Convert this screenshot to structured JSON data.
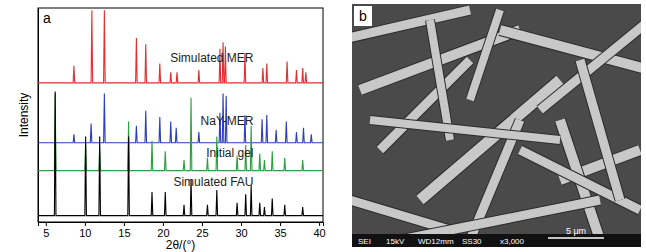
{
  "chart_data": {
    "type": "line",
    "panel_label": "a",
    "x_label": "2θ/(°)",
    "y_label": "Intensity",
    "xlim": [
      4,
      40.5
    ],
    "xticks": [
      5,
      10,
      15,
      20,
      25,
      30,
      35,
      40
    ],
    "ylim": [
      0,
      10
    ],
    "tick_labels": "x",
    "series": [
      {
        "name": "Simulated MER",
        "color": "#e03131",
        "x": [
          4,
          8.5,
          8.6,
          8.7,
          10.8,
          10.9,
          11.0,
          12.4,
          12.5,
          12.6,
          16.5,
          16.6,
          16.7,
          17.7,
          17.8,
          17.9,
          19.5,
          19.6,
          19.7,
          20.9,
          21.0,
          21.1,
          21.7,
          21.8,
          21.9,
          24.5,
          24.6,
          24.7,
          27.2,
          27.3,
          27.4,
          27.6,
          27.7,
          27.8,
          27.9,
          28.0,
          28.1,
          30.4,
          30.5,
          30.6,
          32.7,
          32.8,
          32.9,
          33.2,
          33.3,
          33.4,
          35.8,
          35.9,
          36.0,
          37.0,
          37.1,
          37.2,
          37.8,
          37.9,
          38.0,
          38.2,
          38.3,
          38.4,
          40.5
        ],
        "values": [
          6.5,
          6.5,
          7.3,
          6.5,
          6.5,
          9.9,
          6.5,
          6.5,
          9.9,
          6.5,
          6.5,
          8.6,
          6.5,
          6.5,
          8.3,
          6.5,
          6.5,
          7.4,
          6.5,
          6.5,
          7.0,
          6.5,
          6.5,
          7.0,
          6.5,
          6.5,
          7.1,
          6.5,
          6.5,
          8.1,
          6.5,
          6.5,
          8.4,
          6.5,
          6.5,
          8.2,
          6.5,
          6.5,
          7.9,
          6.5,
          6.5,
          7.2,
          6.5,
          6.5,
          7.4,
          6.5,
          6.5,
          7.5,
          6.5,
          6.5,
          7.1,
          6.5,
          6.5,
          7.2,
          6.5,
          6.5,
          7.0,
          6.5,
          6.5
        ]
      },
      {
        "name": "NaY-MER",
        "color": "#2b3fbf",
        "x": [
          4,
          8.5,
          8.6,
          8.7,
          10.7,
          10.8,
          10.9,
          12.4,
          12.5,
          12.6,
          16.5,
          16.6,
          16.7,
          17.7,
          17.8,
          17.9,
          19.5,
          19.6,
          19.7,
          20.9,
          21.0,
          21.1,
          21.6,
          21.7,
          21.8,
          24.5,
          24.6,
          24.7,
          27.2,
          27.3,
          27.4,
          27.6,
          27.7,
          27.8,
          28.0,
          28.1,
          28.2,
          30.4,
          30.5,
          30.6,
          32.6,
          32.7,
          32.8,
          33.2,
          33.3,
          33.4,
          34.4,
          34.5,
          34.6,
          35.7,
          35.8,
          35.9,
          37.0,
          37.1,
          37.2,
          37.9,
          38.0,
          38.1,
          38.9,
          39.0,
          39.1,
          40.5
        ],
        "values": [
          3.7,
          3.7,
          4.1,
          3.7,
          3.7,
          4.6,
          3.7,
          3.7,
          6.0,
          3.7,
          3.7,
          4.5,
          3.7,
          3.7,
          5.2,
          3.7,
          3.7,
          4.9,
          3.7,
          3.7,
          4.7,
          3.7,
          3.7,
          4.4,
          3.7,
          3.7,
          4.2,
          3.7,
          3.7,
          5.1,
          3.7,
          3.7,
          6.0,
          3.7,
          3.7,
          5.9,
          3.7,
          3.7,
          5.0,
          3.7,
          3.7,
          4.8,
          3.7,
          3.7,
          5.0,
          3.7,
          3.7,
          4.3,
          3.7,
          3.7,
          4.7,
          3.7,
          3.7,
          4.2,
          3.7,
          3.7,
          4.4,
          3.7,
          3.7,
          4.1,
          3.7,
          3.7
        ]
      },
      {
        "name": "Initial gel",
        "color": "#2e9e3e",
        "x": [
          4,
          6.1,
          6.2,
          6.3,
          10.0,
          10.1,
          10.2,
          11.8,
          11.9,
          12.0,
          15.5,
          15.6,
          15.7,
          18.5,
          18.6,
          18.7,
          20.2,
          20.3,
          20.4,
          22.6,
          22.7,
          22.8,
          23.5,
          23.6,
          23.7,
          25.6,
          25.7,
          25.8,
          26.8,
          26.9,
          27.0,
          29.4,
          29.5,
          29.6,
          30.5,
          30.6,
          30.7,
          31.2,
          31.3,
          31.4,
          32.3,
          32.4,
          32.5,
          32.9,
          33.0,
          33.1,
          33.9,
          34.0,
          34.1,
          35.5,
          35.6,
          35.7,
          37.8,
          37.9,
          38.0,
          40.5
        ],
        "values": [
          2.4,
          2.4,
          6.0,
          2.4,
          2.4,
          3.6,
          2.4,
          2.4,
          3.4,
          2.4,
          2.4,
          4.7,
          2.4,
          2.4,
          3.8,
          2.4,
          2.4,
          3.3,
          2.4,
          2.4,
          2.9,
          2.4,
          2.4,
          5.8,
          2.4,
          2.4,
          3.0,
          2.4,
          2.4,
          4.0,
          2.4,
          2.4,
          3.1,
          2.4,
          2.4,
          3.6,
          2.4,
          2.4,
          4.5,
          2.4,
          2.4,
          3.2,
          2.4,
          2.4,
          2.9,
          2.4,
          2.4,
          3.3,
          2.4,
          2.4,
          3.0,
          2.4,
          2.4,
          2.9,
          2.4,
          2.4
        ]
      },
      {
        "name": "Simulated FAU",
        "color": "#000000",
        "x": [
          4,
          6.1,
          6.2,
          6.3,
          10.0,
          10.1,
          10.2,
          11.8,
          11.9,
          12.0,
          15.5,
          15.6,
          15.7,
          18.5,
          18.6,
          18.7,
          20.2,
          20.3,
          20.4,
          22.6,
          22.7,
          22.8,
          23.5,
          23.6,
          23.7,
          25.6,
          25.7,
          25.8,
          26.8,
          26.9,
          27.0,
          29.4,
          29.5,
          29.6,
          30.5,
          30.6,
          30.7,
          31.2,
          31.3,
          31.4,
          32.3,
          32.4,
          32.5,
          32.9,
          33.0,
          33.1,
          33.9,
          34.0,
          34.1,
          35.5,
          35.6,
          35.7,
          37.8,
          37.9,
          38.0,
          40.5
        ],
        "values": [
          0.3,
          0.3,
          6.1,
          0.3,
          0.3,
          4.0,
          0.3,
          0.3,
          4.0,
          0.3,
          0.3,
          4.0,
          0.3,
          0.3,
          1.4,
          0.3,
          0.3,
          1.4,
          0.3,
          0.3,
          0.8,
          0.3,
          0.3,
          2.0,
          0.3,
          0.3,
          0.8,
          0.3,
          0.3,
          1.5,
          0.3,
          0.3,
          0.9,
          0.3,
          0.3,
          1.3,
          0.3,
          0.3,
          1.7,
          0.3,
          0.3,
          0.9,
          0.3,
          0.3,
          0.7,
          0.3,
          0.3,
          1.1,
          0.3,
          0.3,
          0.8,
          0.3,
          0.3,
          0.7,
          0.3,
          0.3
        ]
      }
    ]
  },
  "image": {
    "panel_label": "b",
    "footer": [
      "SEI",
      "15kV",
      "WD12mm",
      "SS30",
      "x3,000"
    ],
    "scale_bar": "5 μm"
  }
}
